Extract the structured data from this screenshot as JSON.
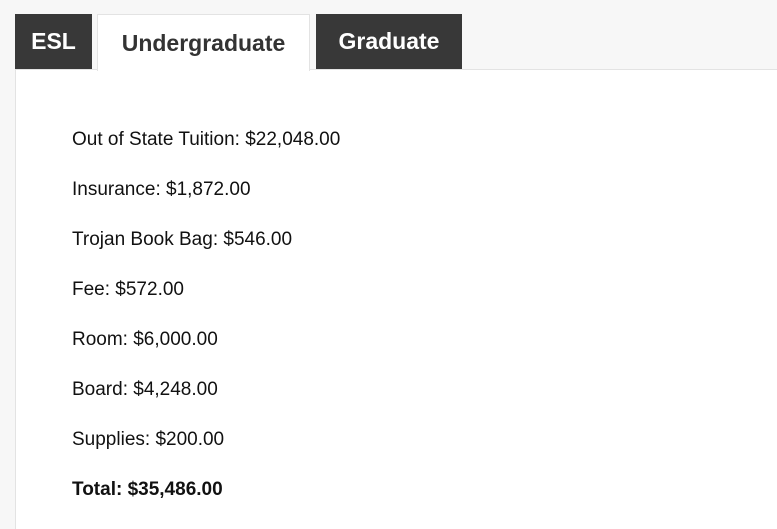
{
  "tabs": [
    {
      "label": "ESL",
      "active": false
    },
    {
      "label": "Undergraduate",
      "active": true
    },
    {
      "label": "Graduate",
      "active": false
    }
  ],
  "items": [
    "Out of State Tuition: $22,048.00",
    "Insurance: $1,872.00",
    "Trojan Book Bag: $546.00",
    "Fee: $572.00",
    "Room: $6,000.00",
    "Board: $4,248.00",
    "Supplies: $200.00"
  ],
  "total": "Total: $35,486.00"
}
